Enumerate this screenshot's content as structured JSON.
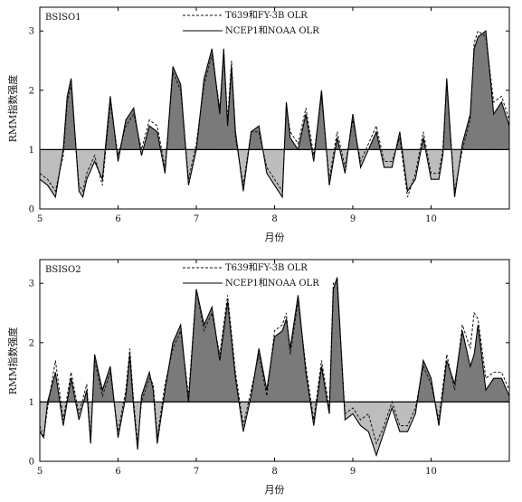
{
  "chart_data": [
    {
      "type": "line",
      "title": "BSISO1",
      "xlabel": "月份",
      "ylabel": "RMM指数强度",
      "xlim": [
        5,
        11
      ],
      "ylim": [
        0,
        3.4
      ],
      "x_ticks": [
        5,
        6,
        7,
        8,
        9,
        10
      ],
      "y_ticks": [
        0,
        1,
        2,
        3
      ],
      "threshold": 1,
      "legend_position": "top-center",
      "fill_above_color": "#7a7a7a",
      "fill_below_color": "#bdbdbd",
      "x": [
        5.0,
        5.1,
        5.2,
        5.3,
        5.35,
        5.4,
        5.5,
        5.55,
        5.6,
        5.7,
        5.8,
        5.9,
        6.0,
        6.1,
        6.2,
        6.3,
        6.4,
        6.5,
        6.6,
        6.7,
        6.8,
        6.9,
        7.0,
        7.1,
        7.2,
        7.3,
        7.35,
        7.4,
        7.45,
        7.5,
        7.6,
        7.7,
        7.8,
        7.9,
        8.0,
        8.1,
        8.15,
        8.2,
        8.3,
        8.4,
        8.5,
        8.6,
        8.7,
        8.8,
        8.9,
        9.0,
        9.1,
        9.2,
        9.3,
        9.4,
        9.5,
        9.6,
        9.7,
        9.8,
        9.9,
        10.0,
        10.1,
        10.15,
        10.2,
        10.3,
        10.4,
        10.5,
        10.55,
        10.6,
        10.7,
        10.8,
        10.9,
        11.0
      ],
      "series": [
        {
          "name": "T639和FY-3B  OLR",
          "style": "dashed",
          "values": [
            0.6,
            0.5,
            0.3,
            0.9,
            1.8,
            2.1,
            0.4,
            0.3,
            0.6,
            0.9,
            0.4,
            1.8,
            0.9,
            1.4,
            1.6,
            1.0,
            1.5,
            1.4,
            0.7,
            2.3,
            2.0,
            0.5,
            1.1,
            2.1,
            2.6,
            1.7,
            2.6,
            1.5,
            2.5,
            1.2,
            0.4,
            1.3,
            1.3,
            0.7,
            0.5,
            0.3,
            1.7,
            1.3,
            1.1,
            1.7,
            0.9,
            1.9,
            0.5,
            1.3,
            0.7,
            1.5,
            0.8,
            1.1,
            1.4,
            0.8,
            0.8,
            1.2,
            0.2,
            0.6,
            1.3,
            0.6,
            0.6,
            1.0,
            2.1,
            0.3,
            1.0,
            1.5,
            2.8,
            3.0,
            2.9,
            1.8,
            1.9,
            1.5
          ]
        },
        {
          "name": "NCEP1和NOAA  OLR",
          "style": "solid",
          "values": [
            0.5,
            0.4,
            0.2,
            1.0,
            1.9,
            2.2,
            0.3,
            0.2,
            0.5,
            0.8,
            0.5,
            1.9,
            0.8,
            1.5,
            1.7,
            0.9,
            1.4,
            1.3,
            0.6,
            2.4,
            2.1,
            0.4,
            1.0,
            2.2,
            2.7,
            1.6,
            2.7,
            1.4,
            2.4,
            1.3,
            0.3,
            1.3,
            1.4,
            0.6,
            0.4,
            0.2,
            1.8,
            1.2,
            1.0,
            1.6,
            0.8,
            2.0,
            0.4,
            1.2,
            0.6,
            1.6,
            0.7,
            1.0,
            1.3,
            0.7,
            0.7,
            1.3,
            0.3,
            0.5,
            1.2,
            0.5,
            0.5,
            0.9,
            2.2,
            0.2,
            1.1,
            1.6,
            2.7,
            2.9,
            3.0,
            1.6,
            1.8,
            1.4
          ]
        }
      ]
    },
    {
      "type": "line",
      "title": "BSISO2",
      "xlabel": "月份",
      "ylabel": "RMM指数强度",
      "xlim": [
        5,
        11
      ],
      "ylim": [
        0,
        3.4
      ],
      "x_ticks": [
        5,
        6,
        7,
        8,
        9,
        10
      ],
      "y_ticks": [
        0,
        1,
        2,
        3
      ],
      "threshold": 1,
      "legend_position": "top-center",
      "fill_above_color": "#7a7a7a",
      "fill_below_color": "#bdbdbd",
      "x": [
        5.0,
        5.05,
        5.1,
        5.2,
        5.3,
        5.4,
        5.5,
        5.6,
        5.65,
        5.7,
        5.8,
        5.9,
        6.0,
        6.1,
        6.15,
        6.2,
        6.25,
        6.3,
        6.4,
        6.45,
        6.5,
        6.6,
        6.7,
        6.8,
        6.9,
        7.0,
        7.1,
        7.2,
        7.3,
        7.4,
        7.5,
        7.6,
        7.7,
        7.8,
        7.9,
        8.0,
        8.1,
        8.15,
        8.2,
        8.3,
        8.4,
        8.5,
        8.6,
        8.7,
        8.75,
        8.8,
        8.9,
        9.0,
        9.1,
        9.2,
        9.3,
        9.4,
        9.5,
        9.6,
        9.7,
        9.8,
        9.9,
        10.0,
        10.1,
        10.2,
        10.3,
        10.4,
        10.5,
        10.55,
        10.6,
        10.7,
        10.8,
        10.9,
        11.0
      ],
      "series": [
        {
          "name": "T639和FY-3B  OLR",
          "style": "dashed",
          "values": [
            0.6,
            0.4,
            0.9,
            1.7,
            0.7,
            1.5,
            0.8,
            1.3,
            0.4,
            1.7,
            1.1,
            1.5,
            0.5,
            1.2,
            1.9,
            1.0,
            0.3,
            1.0,
            1.4,
            1.3,
            0.4,
            1.3,
            1.9,
            2.2,
            1.1,
            2.9,
            2.2,
            2.5,
            1.8,
            2.8,
            1.5,
            0.6,
            1.2,
            1.8,
            1.1,
            2.2,
            2.3,
            2.5,
            1.8,
            2.7,
            1.6,
            0.7,
            1.7,
            0.9,
            3.0,
            3.0,
            0.8,
            0.9,
            0.7,
            0.8,
            0.3,
            0.6,
            1.0,
            0.6,
            0.6,
            0.9,
            1.6,
            1.3,
            0.7,
            1.8,
            1.2,
            2.3,
            1.9,
            2.5,
            2.4,
            1.4,
            1.5,
            1.5,
            1.2
          ]
        },
        {
          "name": "NCEP1和NOAA  OLR",
          "style": "solid",
          "values": [
            0.5,
            0.4,
            1.0,
            1.5,
            0.6,
            1.4,
            0.7,
            1.2,
            0.3,
            1.8,
            1.2,
            1.6,
            0.4,
            1.1,
            1.8,
            0.9,
            0.2,
            1.1,
            1.5,
            1.2,
            0.3,
            1.2,
            2.0,
            2.3,
            1.0,
            2.9,
            2.3,
            2.6,
            1.7,
            2.7,
            1.4,
            0.5,
            1.1,
            1.9,
            1.2,
            2.1,
            2.2,
            2.4,
            1.9,
            2.8,
            1.5,
            0.6,
            1.6,
            0.8,
            2.9,
            3.1,
            0.7,
            0.8,
            0.6,
            0.5,
            0.1,
            0.5,
            0.9,
            0.5,
            0.5,
            0.8,
            1.7,
            1.4,
            0.6,
            1.7,
            1.3,
            2.2,
            1.6,
            1.8,
            2.3,
            1.2,
            1.4,
            1.4,
            1.1
          ]
        }
      ]
    }
  ]
}
